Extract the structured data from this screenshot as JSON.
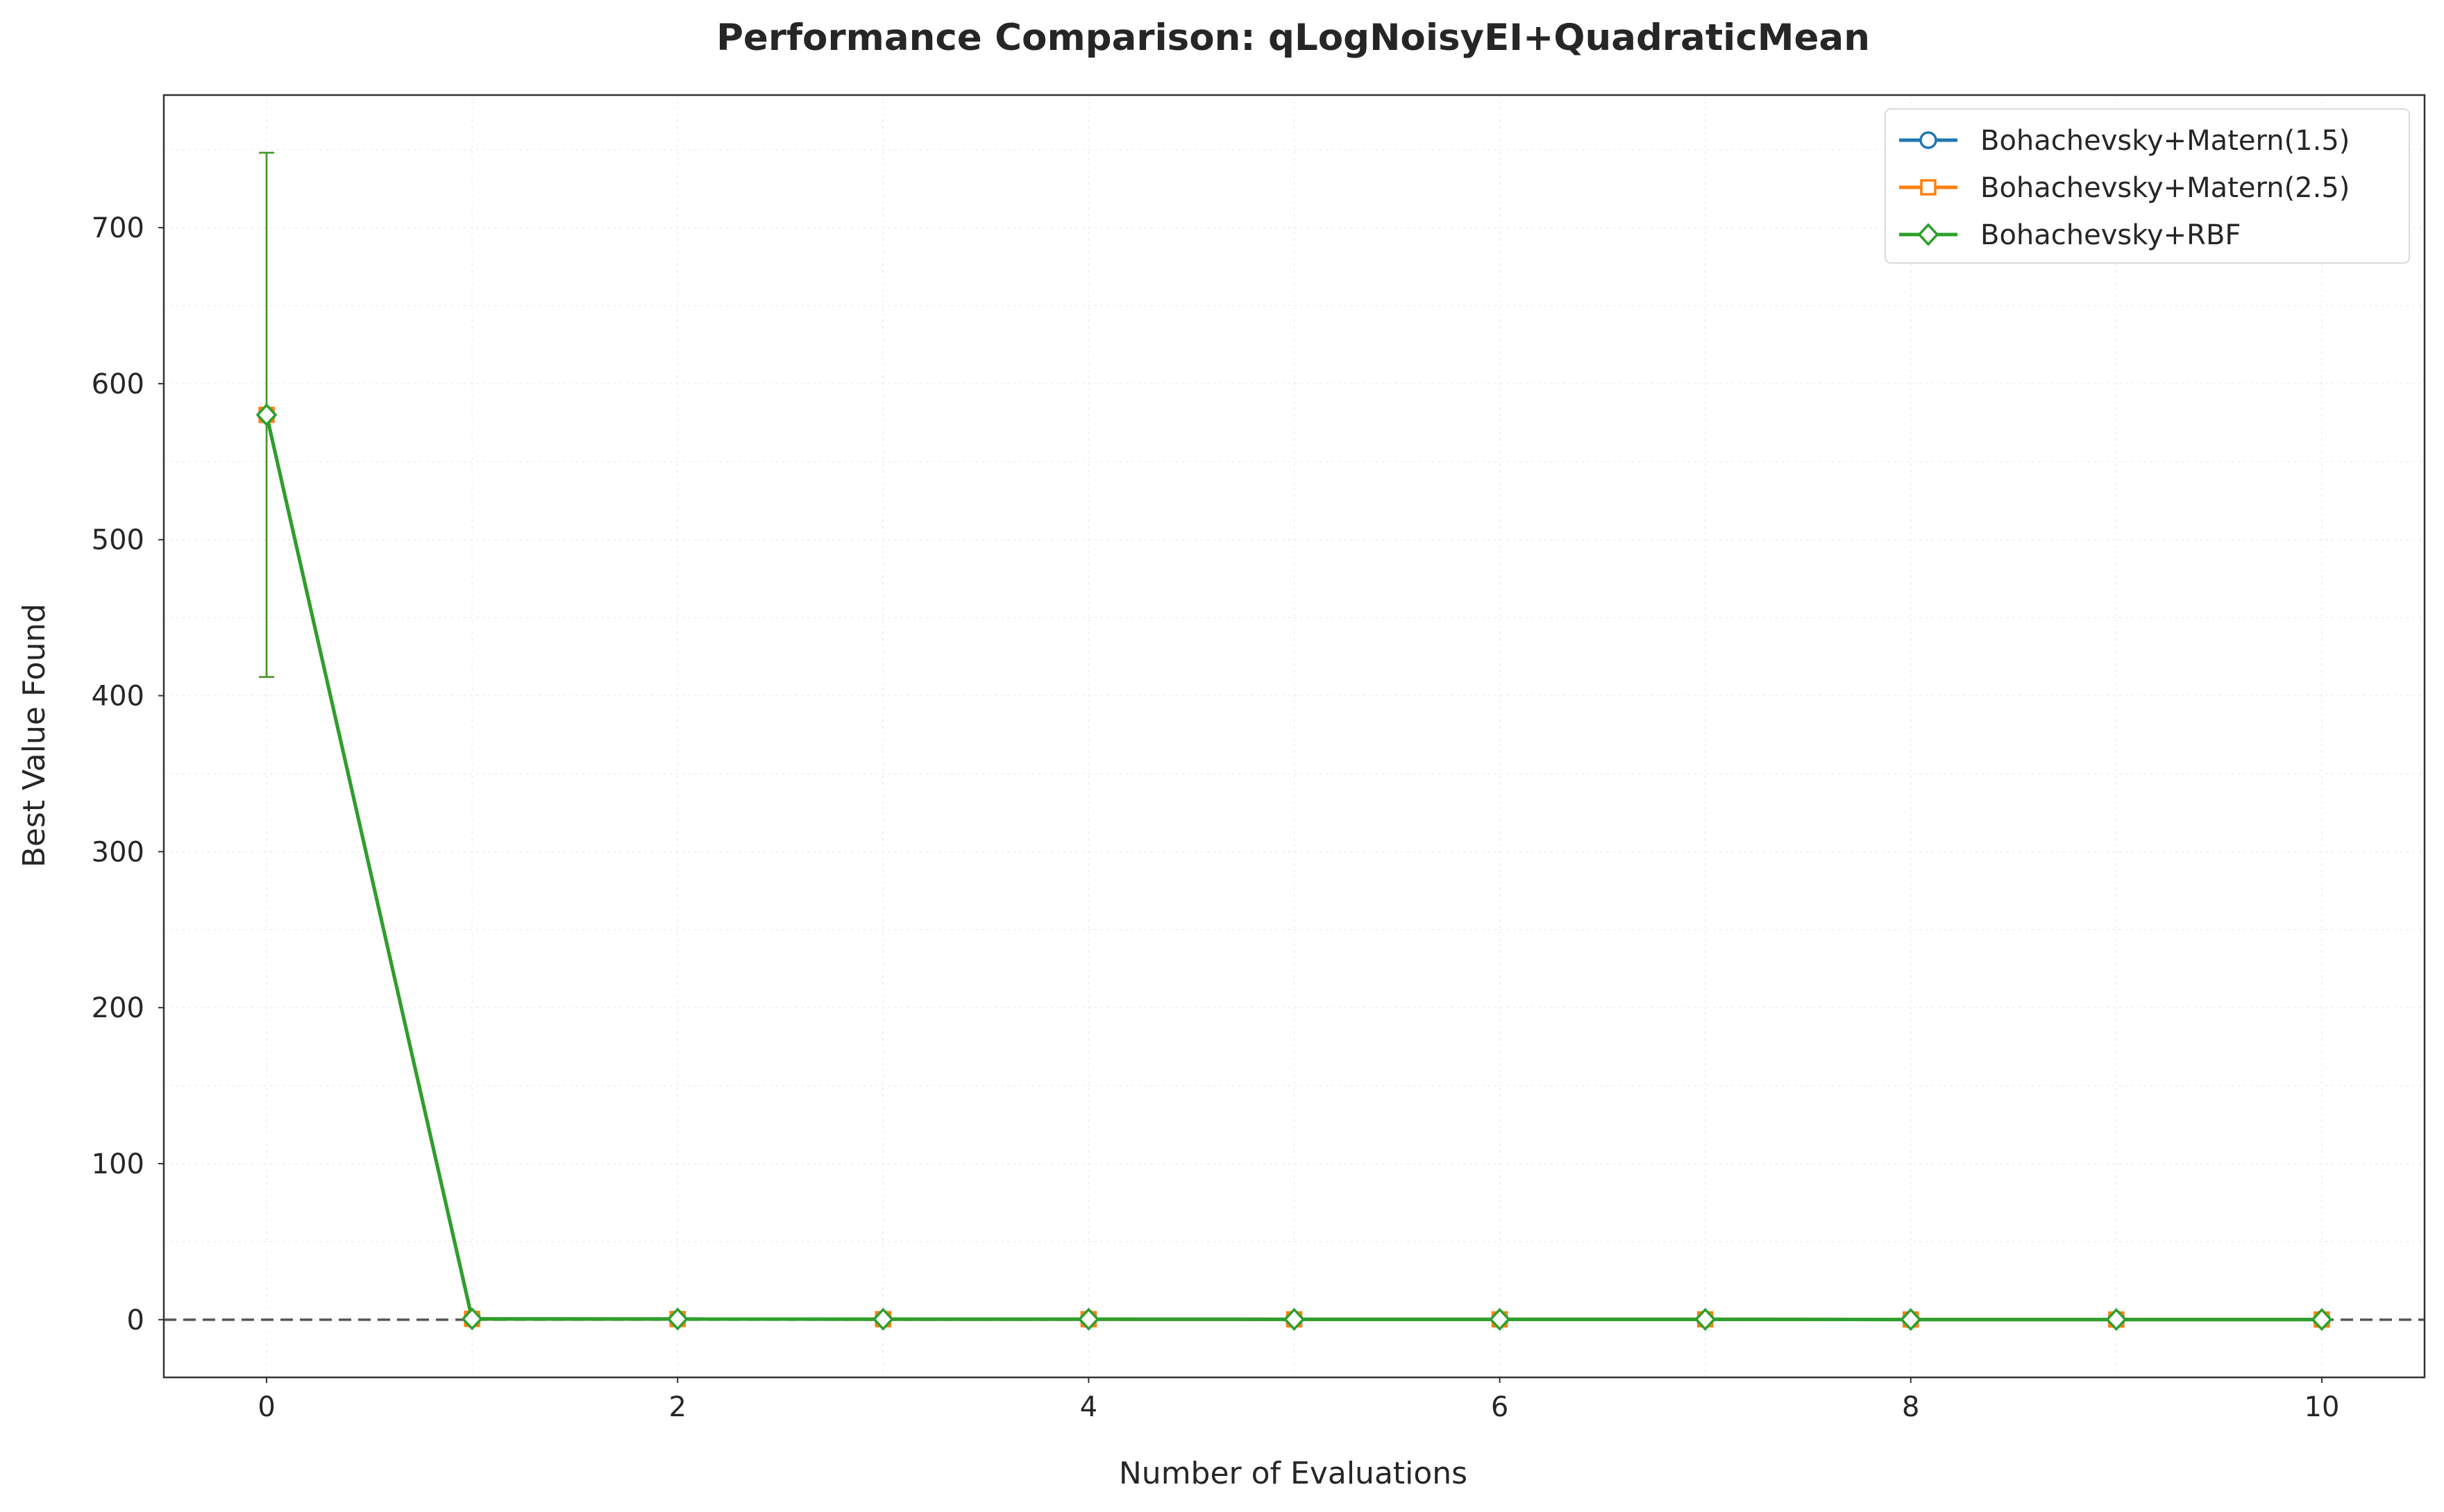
{
  "chart_data": {
    "type": "line",
    "title": "Performance Comparison: qLogNoisyEI+QuadraticMean",
    "xlabel": "Number of Evaluations",
    "ylabel": "Best Value Found",
    "xlim": [
      -0.5,
      10.5
    ],
    "ylim": [
      -37,
      785
    ],
    "x_ticks": [
      0,
      2,
      4,
      6,
      8,
      10
    ],
    "y_ticks": [
      0,
      100,
      200,
      300,
      400,
      500,
      600,
      700
    ],
    "grid": true,
    "legend_position": "top-right",
    "reference_line": {
      "y": 0,
      "style": "dashed",
      "color": "#555555"
    },
    "x": [
      0,
      1,
      2,
      3,
      4,
      5,
      6,
      7,
      8,
      9,
      10
    ],
    "series": [
      {
        "name": "Bohachevsky+Matern(1.5)",
        "color": "#1f77b4",
        "marker": "circle",
        "values": [
          580,
          0.5,
          0.4,
          0.3,
          0.3,
          0.2,
          0.2,
          0.2,
          0.1,
          0.1,
          0.1
        ],
        "error": [
          168,
          0,
          0,
          0,
          0,
          0,
          0,
          0,
          0,
          0,
          0
        ]
      },
      {
        "name": "Bohachevsky+Matern(2.5)",
        "color": "#ff7f0e",
        "marker": "square",
        "values": [
          580,
          0.5,
          0.4,
          0.3,
          0.3,
          0.2,
          0.2,
          0.2,
          0.1,
          0.1,
          0.1
        ],
        "error": [
          168,
          0,
          0,
          0,
          0,
          0,
          0,
          0,
          0,
          0,
          0
        ]
      },
      {
        "name": "Bohachevsky+RBF",
        "color": "#2ca02c",
        "marker": "diamond",
        "values": [
          580,
          0.5,
          0.4,
          0.3,
          0.3,
          0.2,
          0.2,
          0.2,
          0.1,
          0.1,
          0.1
        ],
        "error": [
          168,
          0,
          0,
          0,
          0,
          0,
          0,
          0,
          0,
          0,
          0
        ]
      }
    ]
  }
}
